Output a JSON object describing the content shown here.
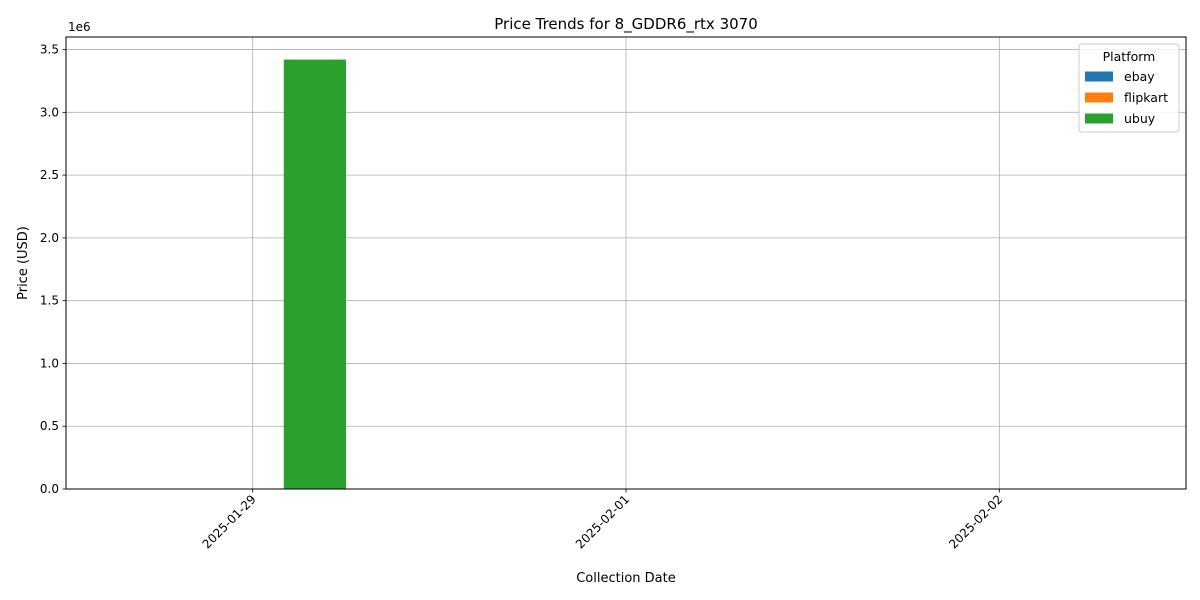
{
  "chart_data": {
    "type": "bar",
    "title": "Price Trends for 8_GDDR6_rtx 3070",
    "xlabel": "Collection Date",
    "ylabel": "Price (USD)",
    "y_offset_text": "1e6",
    "categories": [
      "2025-01-29",
      "2025-02-01",
      "2025-02-02"
    ],
    "ylim": [
      0,
      3.6
    ],
    "yticks": [
      "0.0",
      "0.5",
      "1.0",
      "1.5",
      "2.0",
      "2.5",
      "3.0",
      "3.5"
    ],
    "grid": true,
    "legend": {
      "title": "Platform",
      "placement": "top-right"
    },
    "series": [
      {
        "name": "ebay",
        "color": "#1f77b4",
        "values": [
          0,
          0,
          0
        ]
      },
      {
        "name": "flipkart",
        "color": "#ff7f0e",
        "values": [
          0,
          0,
          0
        ]
      },
      {
        "name": "ubuy",
        "color": "#2ca02c",
        "values": [
          3.42,
          0,
          0
        ]
      }
    ]
  }
}
